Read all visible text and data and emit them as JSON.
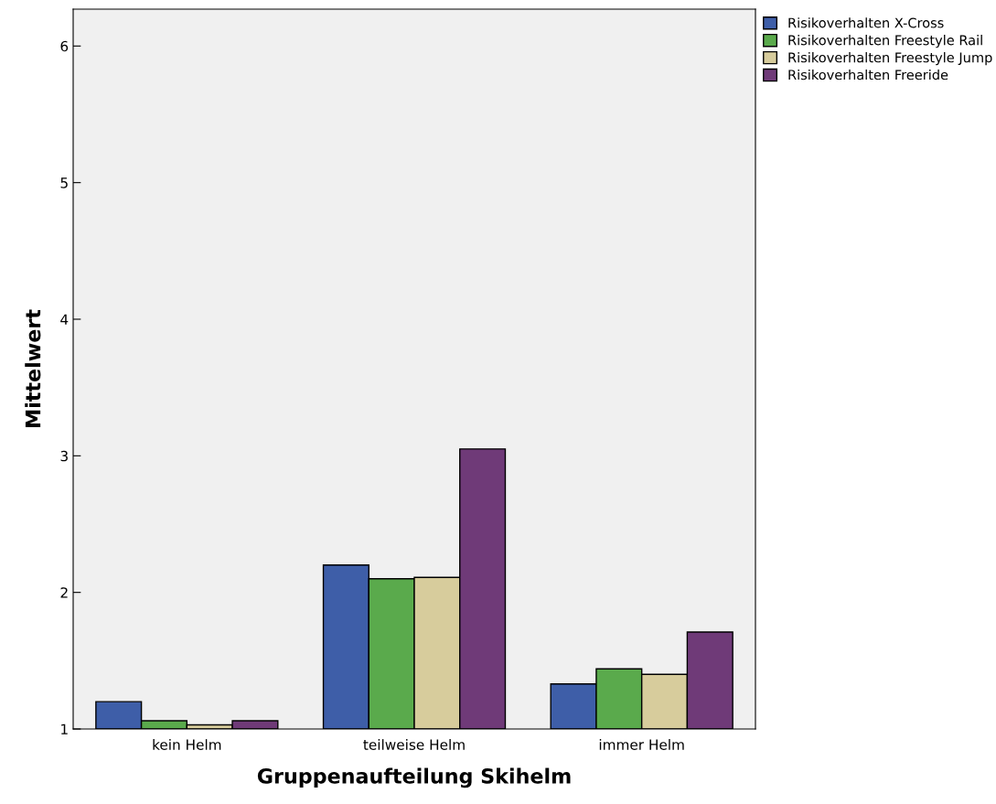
{
  "chart_data": {
    "type": "bar",
    "xlabel": "Gruppenaufteilung Skihelm",
    "ylabel": "Mittelwert",
    "categories": [
      "kein Helm",
      "teilweise Helm",
      "immer Helm"
    ],
    "series": [
      {
        "name": "Risikoverhalten X-Cross",
        "color": "#3e5ea8",
        "values": [
          1.2,
          2.2,
          1.33
        ]
      },
      {
        "name": "Risikoverhalten Freestyle Rail",
        "color": "#5aaa4c",
        "values": [
          1.06,
          2.1,
          1.44
        ]
      },
      {
        "name": "Risikoverhalten Freestyle Jump",
        "color": "#d7cc9c",
        "values": [
          1.03,
          2.11,
          1.4
        ]
      },
      {
        "name": "Risikoverhalten Freeride",
        "color": "#6f3a78",
        "values": [
          1.06,
          3.05,
          1.71
        ]
      }
    ],
    "ylim": [
      1,
      6.27
    ],
    "yticks": [
      1,
      2,
      3,
      4,
      5,
      6
    ],
    "grid": false,
    "legend": "top right"
  }
}
